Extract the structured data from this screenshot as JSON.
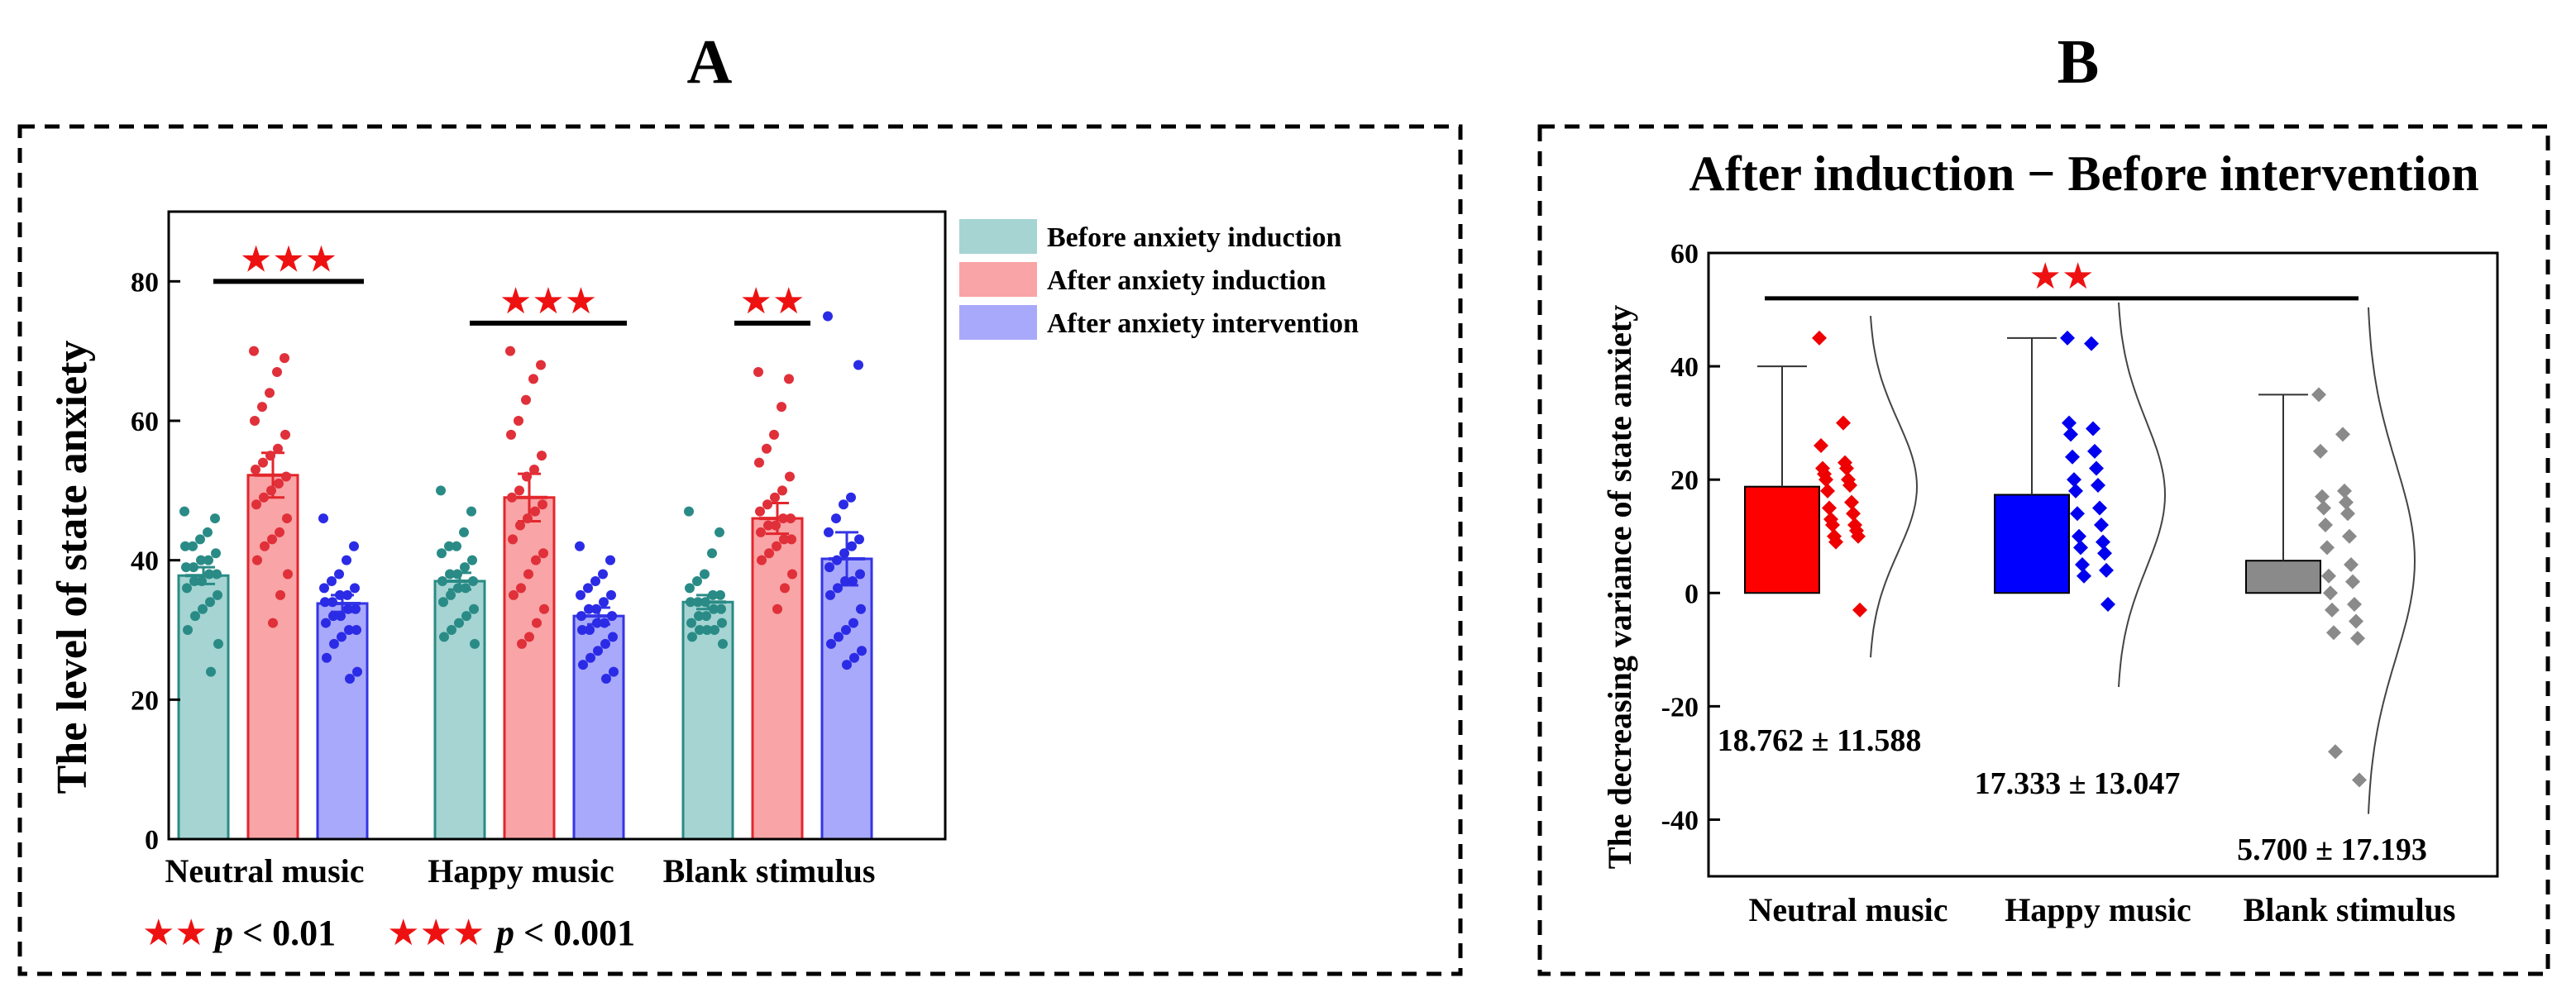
{
  "panel_a_label": "A",
  "panel_b_label": "B",
  "colors": {
    "teal_fill": "#a5d4d3",
    "teal_edge": "#2a8b86",
    "red_fill": "#f9a4a6",
    "red_edge": "#e3262c",
    "red_dot": "#e0303a",
    "blue_fill": "#a9a9fb",
    "blue_edge": "#3535e6",
    "blue_dot": "#2b2be6",
    "gray": "#8a8a8a",
    "star": "#ee1111"
  },
  "legend_note": {
    "two_star": "★★",
    "two_label": "p < 0.01",
    "three_star": "★★★",
    "three_label": "p < 0.001",
    "p": "p",
    "two_rest": " < 0.01",
    "three_rest": " < 0.001"
  },
  "chart_data": [
    {
      "type": "bar",
      "panel": "A",
      "ylabel": "The level of state anxiety",
      "ylim": [
        0,
        90
      ],
      "yticks": [
        0,
        20,
        40,
        60,
        80
      ],
      "categories": [
        "Neutral music",
        "Happy music",
        "Blank stimulus"
      ],
      "legend": [
        "Before anxiety induction",
        "After anxiety induction",
        "After anxiety intervention"
      ],
      "series": [
        {
          "name": "Before anxiety induction",
          "values": [
            37.8,
            37.0,
            34.0
          ],
          "errors": [
            1.2,
            1.2,
            1.0
          ],
          "points": [
            [
              47,
              46,
              44,
              43,
              42,
              42,
              41,
              40,
              40,
              39,
              39,
              38,
              38,
              37,
              37,
              36,
              35,
              34,
              33,
              32,
              30,
              28,
              24
            ],
            [
              50,
              47,
              44,
              42,
              42,
              41,
              40,
              39,
              38,
              38,
              37,
              37,
              36,
              36,
              35,
              34,
              33,
              32,
              31,
              30,
              29,
              28
            ],
            [
              47,
              44,
              41,
              38,
              37,
              36,
              35,
              35,
              34,
              34,
              34,
              33,
              33,
              32,
              32,
              31,
              31,
              30,
              30,
              30,
              29,
              28
            ]
          ]
        },
        {
          "name": "After anxiety induction",
          "values": [
            52.2,
            49.0,
            46.0
          ],
          "errors": [
            3.2,
            3.4,
            2.2
          ],
          "points": [
            [
              70,
              69,
              67,
              64,
              62,
              60,
              58,
              56,
              55,
              54,
              53,
              52,
              51,
              50,
              49,
              48,
              46,
              44,
              43,
              42,
              40,
              38,
              35,
              31
            ],
            [
              70,
              68,
              66,
              63,
              60,
              58,
              55,
              53,
              52,
              50,
              49,
              48,
              47,
              46,
              45,
              43,
              41,
              40,
              38,
              36,
              35,
              33,
              31,
              29,
              28
            ],
            [
              67,
              66,
              62,
              58,
              56,
              54,
              52,
              50,
              49,
              48,
              47,
              46,
              46,
              45,
              45,
              44,
              43,
              43,
              42,
              41,
              40,
              38,
              36,
              33
            ]
          ]
        },
        {
          "name": "After anxiety intervention",
          "values": [
            33.8,
            32.0,
            40.2
          ],
          "errors": [
            1.2,
            1.2,
            3.8
          ],
          "points": [
            [
              46,
              42,
              40,
              38,
              37,
              36,
              36,
              35,
              35,
              34,
              34,
              33,
              33,
              32,
              32,
              31,
              30,
              30,
              29,
              28,
              26,
              24,
              23
            ],
            [
              42,
              40,
              38,
              37,
              36,
              35,
              35,
              34,
              33,
              33,
              32,
              32,
              31,
              31,
              30,
              30,
              29,
              28,
              27,
              26,
              25,
              24,
              23
            ],
            [
              75,
              68,
              49,
              48,
              46,
              44,
              43,
              42,
              41,
              40,
              39,
              38,
              37,
              37,
              36,
              35,
              33,
              31,
              30,
              29,
              28,
              27,
              26,
              25
            ]
          ]
        }
      ],
      "significance": [
        {
          "category": "Neutral music",
          "stars": "★★★"
        },
        {
          "category": "Happy music",
          "stars": "★★★"
        },
        {
          "category": "Blank stimulus",
          "stars": "★★"
        }
      ]
    },
    {
      "type": "bar",
      "panel": "B",
      "title": "After induction − Before intervention",
      "ylabel": "The decreasing variance of state anxiety",
      "ylim": [
        -50,
        60
      ],
      "yticks": [
        -40,
        -20,
        0,
        20,
        40,
        60
      ],
      "categories": [
        "Neutral music",
        "Happy music",
        "Blank stimulus"
      ],
      "values": [
        18.762,
        17.333,
        5.7
      ],
      "sd": [
        11.588,
        13.047,
        17.193
      ],
      "whisker_top": [
        40,
        45,
        35
      ],
      "annotations": [
        "18.762 ± 11.588",
        "17.333 ± 13.047",
        "5.700 ± 17.193"
      ],
      "significance": {
        "stars": "★★"
      },
      "points": [
        [
          45,
          30,
          26,
          23,
          22,
          22,
          21,
          20,
          20,
          19,
          18,
          16,
          15,
          14,
          13,
          12,
          12,
          11,
          10,
          10,
          9,
          -3
        ],
        [
          45,
          44,
          30,
          29,
          28,
          25,
          24,
          22,
          20,
          19,
          18,
          15,
          14,
          12,
          10,
          9,
          8,
          7,
          5,
          4,
          3,
          -2
        ],
        [
          35,
          28,
          25,
          18,
          17,
          16,
          15,
          14,
          12,
          10,
          8,
          5,
          3,
          2,
          0,
          -2,
          -3,
          -5,
          -7,
          -8,
          -28,
          -33
        ]
      ]
    }
  ]
}
